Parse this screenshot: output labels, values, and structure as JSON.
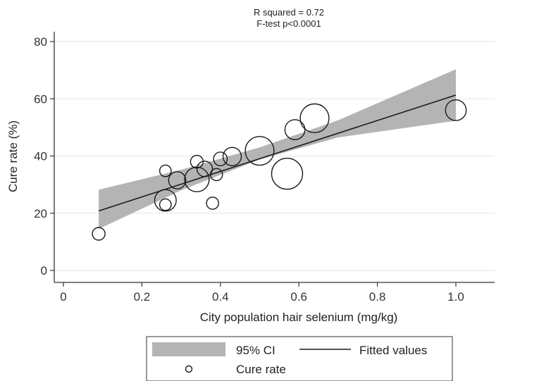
{
  "chart_data": {
    "type": "scatter",
    "xlabel": "City population hair selenium (mg/kg)",
    "ylabel": "Cure rate (%)",
    "xlim": [
      0,
      1.2
    ],
    "ylim": [
      0,
      80
    ],
    "x_ticks": [
      0,
      0.2,
      0.4,
      0.6,
      0.8,
      1.0
    ],
    "x_tick_labels": [
      "0",
      "0.2",
      "0.4",
      "0.6",
      "0.8",
      "1.0"
    ],
    "y_ticks": [
      0,
      20,
      40,
      60,
      80
    ],
    "y_tick_labels": [
      "0",
      "20",
      "40",
      "60",
      "80"
    ],
    "grid": "horizontal",
    "legend_position": "bottom",
    "annotations": [
      "R squared = 0.72",
      "F-test p<0.0001"
    ],
    "series": [
      {
        "name": "Cure rate",
        "kind": "scatter",
        "marker": "hollow-circle",
        "points": [
          {
            "x": 0.09,
            "y": 12.8,
            "w": 1.2
          },
          {
            "x": 0.26,
            "y": 24.5,
            "w": 3.5
          },
          {
            "x": 0.26,
            "y": 23.0,
            "w": 1.0
          },
          {
            "x": 0.26,
            "y": 34.8,
            "w": 1.0
          },
          {
            "x": 0.29,
            "y": 31.5,
            "w": 2.2
          },
          {
            "x": 0.34,
            "y": 31.8,
            "w": 4.5
          },
          {
            "x": 0.34,
            "y": 38.0,
            "w": 1.2
          },
          {
            "x": 0.36,
            "y": 35.5,
            "w": 1.8
          },
          {
            "x": 0.38,
            "y": 23.5,
            "w": 1.1
          },
          {
            "x": 0.39,
            "y": 33.5,
            "w": 1.1
          },
          {
            "x": 0.4,
            "y": 39.0,
            "w": 1.4
          },
          {
            "x": 0.43,
            "y": 39.8,
            "w": 2.5
          },
          {
            "x": 0.5,
            "y": 41.8,
            "w": 6.2
          },
          {
            "x": 0.57,
            "y": 33.8,
            "w": 7.2
          },
          {
            "x": 0.59,
            "y": 49.2,
            "w": 3.0
          },
          {
            "x": 0.64,
            "y": 53.2,
            "w": 6.2
          },
          {
            "x": 1.0,
            "y": 56.0,
            "w": 3.2
          }
        ]
      },
      {
        "name": "Fitted values",
        "kind": "line",
        "x": [
          0.09,
          1.0
        ],
        "y": [
          20.8,
          61.3
        ]
      },
      {
        "name": "95% CI",
        "kind": "band",
        "x": [
          0.09,
          0.3,
          0.5,
          0.7,
          1.0
        ],
        "lower": [
          14.5,
          28.0,
          38.8,
          46.5,
          52.3
        ],
        "upper": [
          28.2,
          35.2,
          43.0,
          52.5,
          70.3
        ]
      }
    ]
  },
  "colors": {
    "band_fill": "#b4b4b4",
    "fit_line": "#1a1a1a",
    "marker_stroke": "#1a1a1a",
    "grid": "#e6e6e6",
    "axis": "#333333"
  }
}
